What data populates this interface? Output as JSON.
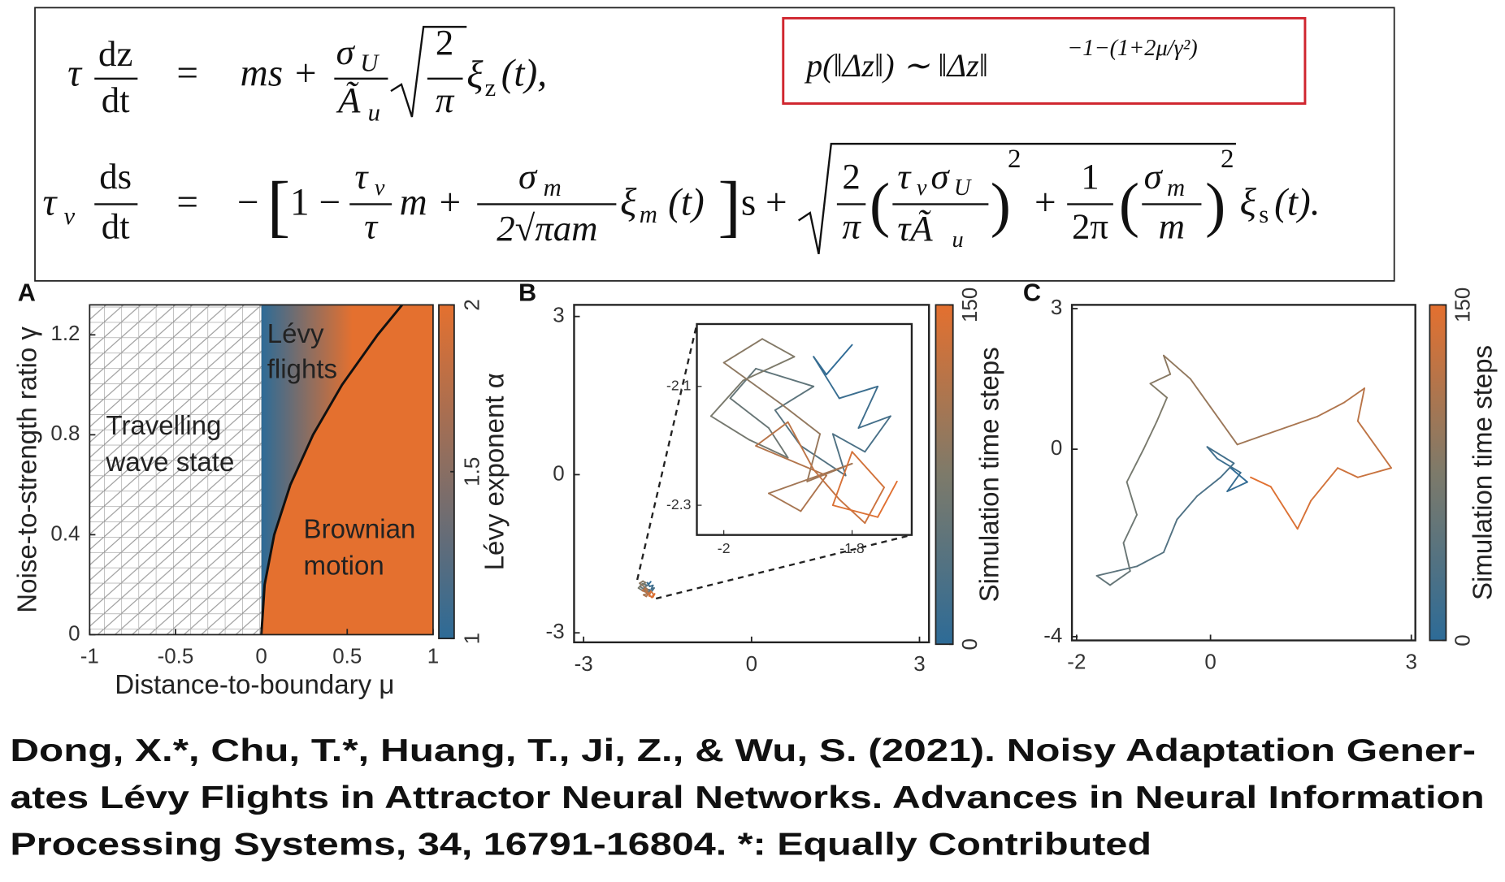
{
  "equations": {
    "eq1": [
      "τ",
      "dz",
      "dt",
      "=",
      "ms +",
      "σ",
      "U",
      "Ã",
      "u",
      "2",
      "π",
      "ξ",
      "z",
      "(t),"
    ],
    "eq2": [
      "τ",
      "v",
      "ds",
      "dt",
      "=",
      "−",
      "[",
      "1 −",
      "τ",
      "v",
      "τ",
      "m +",
      "σ",
      "m",
      "2√πam",
      "ξ",
      "m",
      "(t)",
      "]",
      "s +",
      "2",
      "π",
      "(",
      "τ",
      "v",
      "σ",
      "U",
      "τÃ",
      "u",
      ")",
      "2",
      "+",
      "1",
      "2π",
      "(",
      "σ",
      "m",
      "m",
      ")",
      "2",
      "ξ",
      "s",
      "(t)."
    ],
    "boxed": [
      "p(‖Δz‖) ∼ ‖Δz‖",
      "−1−(1+2μ/γ²)"
    ]
  },
  "chart_data": [
    {
      "type": "phase",
      "panel_label": "A",
      "xlabel": "Distance-to-boundary μ",
      "ylabel": "Noise-to-strength ratio γ",
      "xlim": [
        -1,
        1
      ],
      "ylim": [
        0,
        1.32
      ],
      "xticks": [
        -1,
        -0.5,
        0,
        0.5,
        1
      ],
      "yticks": [
        0,
        0.4,
        0.8,
        1.2
      ],
      "boundary": {
        "x": [
          0,
          0.019,
          0.075,
          0.169,
          0.301,
          0.47,
          0.677,
          0.82
        ],
        "y": [
          0,
          0.2,
          0.4,
          0.6,
          0.8,
          1.0,
          1.2,
          1.32
        ]
      },
      "annotations": [
        [
          "Travelling",
          "wave state"
        ],
        [
          "Lévy",
          "flights"
        ],
        [
          "Brownian",
          "motion"
        ]
      ],
      "colorbar": {
        "label": "Lévy exponent α",
        "lim": [
          1,
          2
        ],
        "ticks": [
          1,
          1.5,
          2
        ],
        "colors": [
          "#2d6b97",
          "#e4702f"
        ]
      }
    },
    {
      "type": "trajectory",
      "panel_label": "B",
      "xlim": [
        -3.17,
        3.17
      ],
      "ylim": [
        -3.18,
        3.22
      ],
      "xticks": [
        -3,
        0,
        3
      ],
      "yticks": [
        -3,
        0,
        3
      ],
      "x": [
        -1.8,
        -1.84,
        -1.86,
        -1.82,
        -1.76,
        -1.79,
        -1.74,
        -1.78,
        -1.83,
        -1.81,
        -1.88,
        -1.92,
        -1.86,
        -1.95,
        -1.99,
        -1.93,
        -1.9,
        -1.96,
        -2.02,
        -1.97,
        -1.89,
        -1.94,
        -2.0,
        -1.91,
        -1.85,
        -1.87,
        -1.8,
        -1.93,
        -1.88,
        -1.84,
        -1.95,
        -1.9,
        -1.86,
        -1.82,
        -1.78,
        -1.75,
        -1.8,
        -1.83,
        -1.76,
        -1.73
      ],
      "y": [
        -2.03,
        -2.08,
        -2.05,
        -2.12,
        -2.1,
        -2.17,
        -2.15,
        -2.21,
        -2.18,
        -2.25,
        -2.2,
        -2.14,
        -2.1,
        -2.07,
        -2.12,
        -2.17,
        -2.22,
        -2.19,
        -2.15,
        -2.09,
        -2.05,
        -2.02,
        -2.06,
        -2.13,
        -2.18,
        -2.26,
        -2.23,
        -2.28,
        -2.31,
        -2.25,
        -2.2,
        -2.16,
        -2.24,
        -2.29,
        -2.33,
        -2.27,
        -2.21,
        -2.3,
        -2.32,
        -2.26
      ],
      "inset": {
        "xlim": [
          -2.042,
          -1.707
        ],
        "ylim": [
          -2.35,
          -1.995
        ],
        "xticks": [
          -2,
          -1.8
        ],
        "yticks": [
          -2.3,
          -2.1
        ]
      },
      "colorbar": {
        "label": "Simulation time steps",
        "lim": [
          0,
          150
        ],
        "ticks": [
          0,
          150
        ],
        "colors": [
          "#2d6b97",
          "#7d7a6a",
          "#e4702f"
        ]
      }
    },
    {
      "type": "trajectory",
      "panel_label": "C",
      "xlim": [
        -2.07,
        3.06
      ],
      "ylim": [
        -4.08,
        3.08
      ],
      "xticks": [
        -2,
        0,
        3
      ],
      "yticks": [
        -4,
        0,
        3
      ],
      "x": [
        0.3,
        0.55,
        0.25,
        0.45,
        0.1,
        -0.05,
        0.35,
        0.15,
        -0.2,
        -0.5,
        -0.7,
        -1.1,
        -1.4,
        -1.7,
        -1.5,
        -1.2,
        -1.3,
        -1.1,
        -1.25,
        -1.0,
        -0.8,
        -0.65,
        -0.9,
        -0.6,
        -0.7,
        -0.3,
        0.0,
        0.4,
        0.8,
        1.2,
        1.6,
        2.0,
        2.3,
        2.2,
        2.5,
        2.7,
        2.2,
        1.9,
        1.5,
        1.3,
        0.9,
        0.6
      ],
      "y": [
        -0.4,
        -0.7,
        -0.9,
        -0.5,
        -0.2,
        0.05,
        -0.3,
        -0.6,
        -1.0,
        -1.5,
        -2.2,
        -2.5,
        -2.6,
        -2.7,
        -2.9,
        -2.6,
        -2.0,
        -1.4,
        -0.7,
        0.0,
        0.6,
        1.1,
        1.4,
        1.6,
        2.0,
        1.5,
        0.9,
        0.1,
        0.3,
        0.5,
        0.7,
        1.0,
        1.3,
        0.6,
        0.0,
        -0.4,
        -0.6,
        -0.4,
        -1.1,
        -1.7,
        -0.8,
        -0.6
      ],
      "colorbar": {
        "label": "Simulation time steps",
        "lim": [
          0,
          150
        ],
        "ticks": [
          0,
          150
        ],
        "colors": [
          "#2d6b97",
          "#7d7a6a",
          "#e4702f"
        ]
      }
    }
  ],
  "citation": [
    "Dong, X.*, Chu, T.*, Huang, T., Ji, Z., & Wu, S. (2021). Noisy Adaptation Gener-",
    "ates Lévy Flights in Attractor Neural Networks. Advances in Neural Information",
    "Processing Systems, 34, 16791-16804.  *: Equally Contributed"
  ]
}
